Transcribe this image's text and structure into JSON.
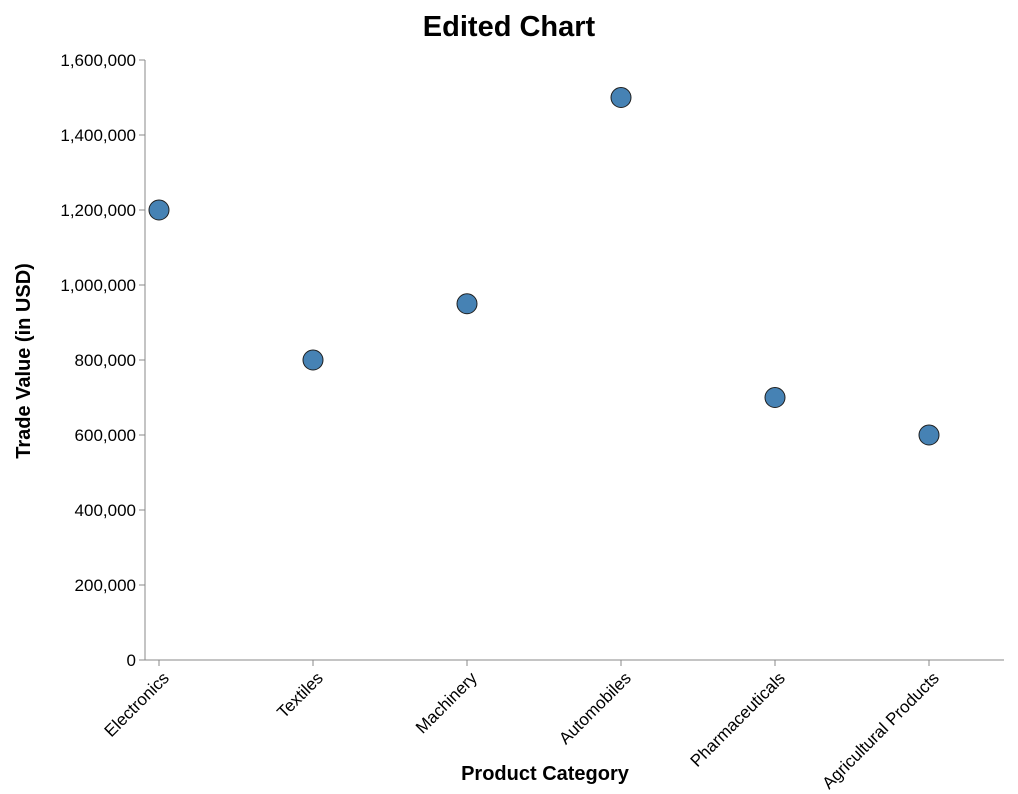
{
  "chart_data": {
    "type": "scatter",
    "title": "Edited Chart",
    "xlabel": "Product Category",
    "ylabel": "Trade Value (in USD)",
    "categories": [
      "Electronics",
      "Textiles",
      "Machinery",
      "Automobiles",
      "Pharmaceuticals",
      "Agricultural Products"
    ],
    "values": [
      1200000,
      800000,
      950000,
      1500000,
      700000,
      600000
    ],
    "ylim": [
      0,
      1600000
    ],
    "yticks": [
      0,
      200000,
      400000,
      600000,
      800000,
      1000000,
      1200000,
      1400000,
      1600000
    ],
    "ytick_labels": [
      "0",
      "200,000",
      "400,000",
      "600,000",
      "800,000",
      "1,000,000",
      "1,200,000",
      "1,400,000",
      "1,600,000"
    ],
    "grid": false,
    "point_color": "#4682b4"
  }
}
